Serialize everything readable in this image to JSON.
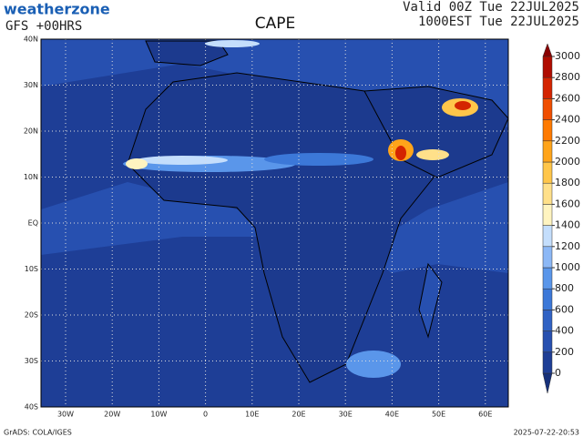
{
  "header": {
    "logo": "weatherzone",
    "model": "GFS +00HRS",
    "title": "CAPE",
    "valid": "Valid 00Z Tue 22JUL2025",
    "local": "1000EST Tue 22JUL2025"
  },
  "map": {
    "lat_labels": [
      "40N",
      "30N",
      "20N",
      "10N",
      "EQ",
      "10S",
      "20S",
      "30S",
      "40S"
    ],
    "lon_labels": [
      "30W",
      "20W",
      "10W",
      "0",
      "10E",
      "20E",
      "30E",
      "40E",
      "50E",
      "60E"
    ]
  },
  "colorbar": {
    "levels": [
      0,
      200,
      400,
      600,
      800,
      1000,
      1200,
      1400,
      1600,
      1800,
      2000,
      2200,
      2400,
      2600,
      2800,
      3000
    ],
    "colors": [
      "#16307a",
      "#1e3e96",
      "#2750b0",
      "#3062c4",
      "#3c78d8",
      "#5a96ea",
      "#8cb8f6",
      "#c4defc",
      "#fff4c0",
      "#ffe08a",
      "#ffc64a",
      "#ffa41a",
      "#ff7a00",
      "#f04e00",
      "#d42400",
      "#b00c00",
      "#8a0000"
    ]
  },
  "footer": {
    "credit": "GrADS: COLA/IGES",
    "timestamp": "2025-07-22-20:53"
  }
}
